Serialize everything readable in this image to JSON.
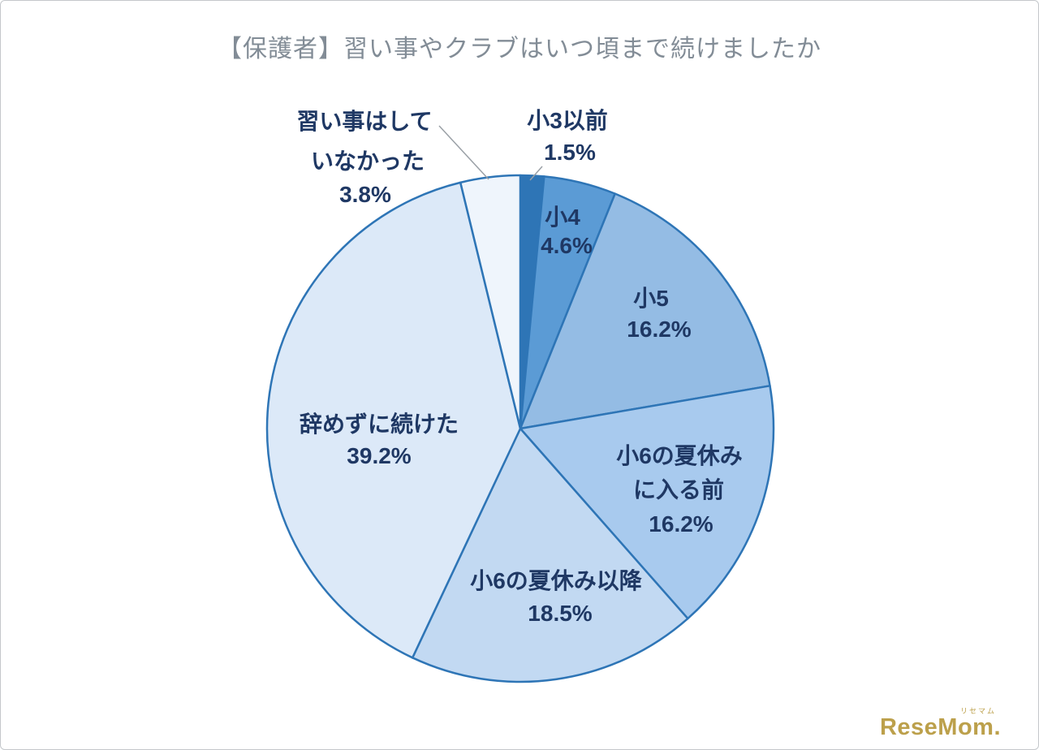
{
  "page": {
    "title": "【保護者】習い事やクラブはいつ頃まで続けましたか"
  },
  "logo": {
    "text": "ReseMom.",
    "ruby": "リセマム"
  },
  "chart_data": {
    "type": "pie",
    "title": "【保護者】習い事やクラブはいつ頃まで続けましたか",
    "unit": "%",
    "start_angle_deg": 0,
    "direction": "clockwise",
    "stroke_color": "#2E75B6",
    "label_color": "#1F3864",
    "leader_line_color": "#9aa0a6",
    "slices": [
      {
        "label": "小3以前",
        "value": 1.5,
        "pct_label": "1.5%",
        "color": "#2E75B6",
        "label_lines": [
          "小3以前"
        ],
        "placement": "outside"
      },
      {
        "label": "小4",
        "value": 4.6,
        "pct_label": "4.6%",
        "color": "#5B9BD5",
        "label_lines": [
          "小4"
        ],
        "placement": "inside"
      },
      {
        "label": "小5",
        "value": 16.2,
        "pct_label": "16.2%",
        "color": "#94BCE4",
        "label_lines": [
          "小5"
        ],
        "placement": "inside"
      },
      {
        "label": "小6の夏休みに入る前",
        "value": 16.2,
        "pct_label": "16.2%",
        "color": "#A8CAEE",
        "label_lines": [
          "小6の夏休み",
          "に入る前"
        ],
        "placement": "inside"
      },
      {
        "label": "小6の夏休み以降",
        "value": 18.5,
        "pct_label": "18.5%",
        "color": "#C2D9F2",
        "label_lines": [
          "小6の夏休み以降"
        ],
        "placement": "inside"
      },
      {
        "label": "辞めずに続けた",
        "value": 39.2,
        "pct_label": "39.2%",
        "color": "#DCE9F8",
        "label_lines": [
          "辞めずに続けた"
        ],
        "placement": "inside"
      },
      {
        "label": "習い事はしていなかった",
        "value": 3.8,
        "pct_label": "3.8%",
        "color": "#EFF5FC",
        "label_lines": [
          "習い事はして",
          "いなかった"
        ],
        "placement": "outside"
      }
    ]
  }
}
